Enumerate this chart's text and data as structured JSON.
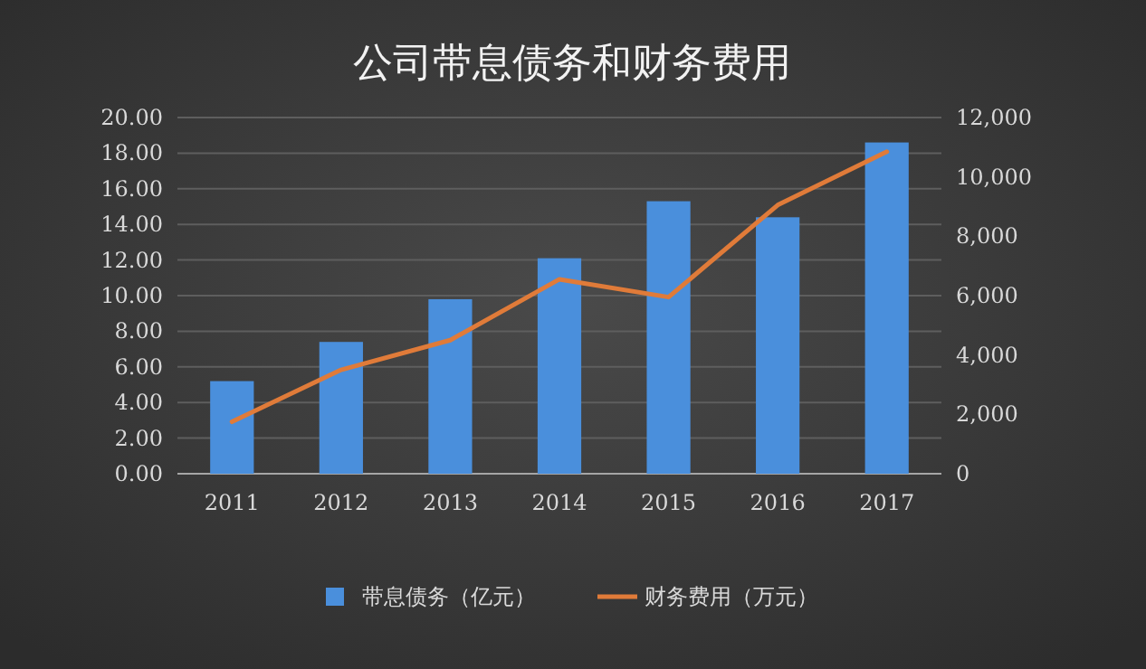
{
  "chart_data": {
    "type": "bar",
    "title": "公司带息债务和财务费用",
    "categories": [
      "2011",
      "2012",
      "2013",
      "2014",
      "2015",
      "2016",
      "2017"
    ],
    "series": [
      {
        "name": "带息债务（亿元）",
        "color": "#4a8fdc",
        "values": [
          5.2,
          7.4,
          9.8,
          12.1,
          15.3,
          14.4,
          18.6
        ]
      },
      {
        "name": "财务费用（万元）",
        "type": "line",
        "axis": "y2",
        "color": "#e07b39",
        "values": [
          1750,
          3500,
          4500,
          6550,
          5950,
          9050,
          10850
        ]
      }
    ],
    "ylim": [
      0,
      20
    ],
    "yticks": [
      {
        "value": 0,
        "label": "0.00"
      },
      {
        "value": 2,
        "label": "2.00"
      },
      {
        "value": 4,
        "label": "4.00"
      },
      {
        "value": 6,
        "label": "6.00"
      },
      {
        "value": 8,
        "label": "8.00"
      },
      {
        "value": 10,
        "label": "10.00"
      },
      {
        "value": 12,
        "label": "12.00"
      },
      {
        "value": 14,
        "label": "14.00"
      },
      {
        "value": 16,
        "label": "16.00"
      },
      {
        "value": 18,
        "label": "18.00"
      },
      {
        "value": 20,
        "label": "20.00"
      }
    ],
    "y2lim": [
      0,
      12000
    ],
    "y2ticks": [
      0,
      {
        "value": 2000,
        "label": "2,000"
      },
      {
        "value": 4000,
        "label": "4,000"
      },
      {
        "value": 6000,
        "label": "6,000"
      },
      {
        "value": 8000,
        "label": "8,000"
      },
      {
        "value": 10000,
        "label": "10,000"
      },
      {
        "value": 12000,
        "label": "12,000"
      }
    ],
    "grid": "y",
    "legend": "bottom",
    "marker": "none",
    "line_style": "solid"
  }
}
